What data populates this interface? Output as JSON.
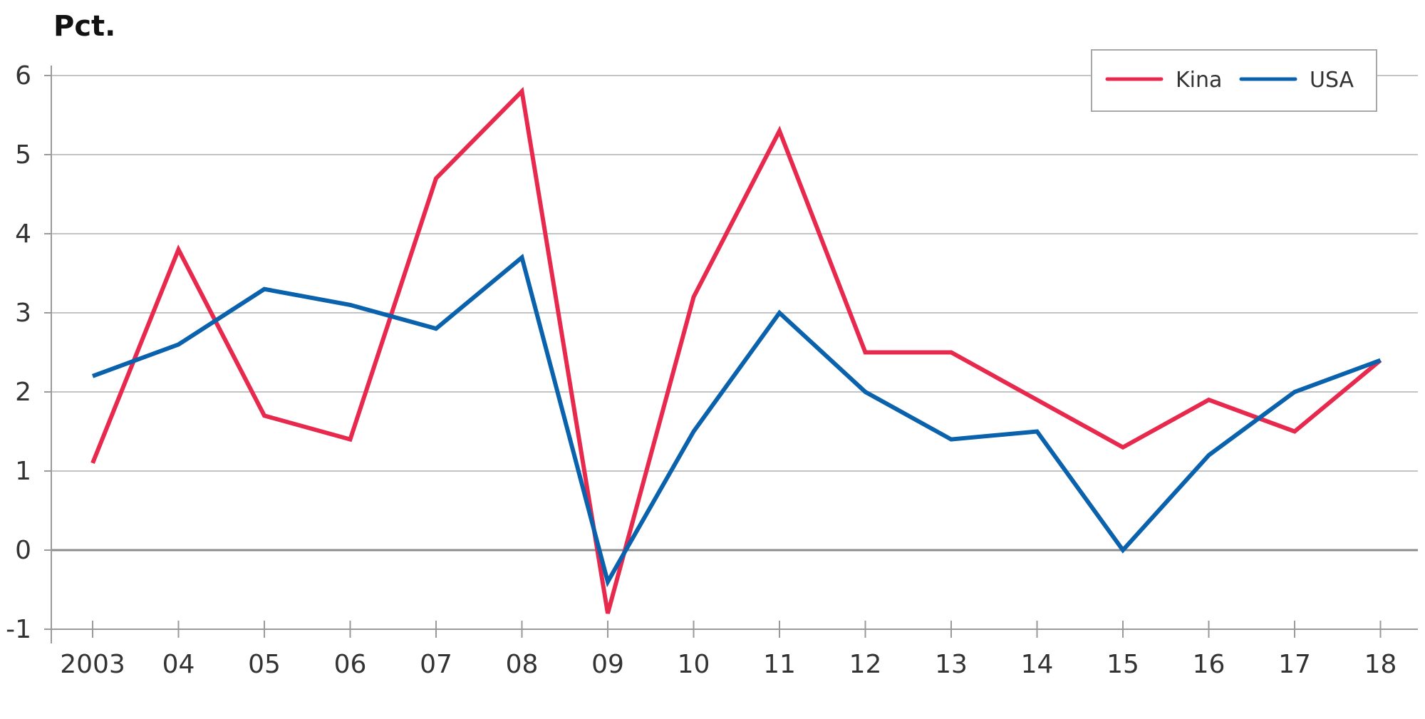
{
  "chart_data": {
    "type": "line",
    "unit_label": "Pct.",
    "x": [
      "2003",
      "04",
      "05",
      "06",
      "07",
      "08",
      "09",
      "10",
      "11",
      "12",
      "13",
      "14",
      "15",
      "16",
      "17",
      "18"
    ],
    "y_ticks": [
      "6",
      "5",
      "4",
      "3",
      "2",
      "1",
      "0",
      "-1"
    ],
    "ylim": [
      -1,
      6
    ],
    "grid": true,
    "legend_position": "top-right",
    "series": [
      {
        "name": "Kina",
        "color": "#e8294e",
        "values": [
          1.1,
          3.8,
          1.7,
          1.4,
          4.7,
          5.8,
          -0.8,
          3.2,
          5.3,
          2.5,
          2.5,
          1.9,
          1.3,
          1.9,
          1.5,
          2.4
        ]
      },
      {
        "name": "USA",
        "color": "#0a62ad",
        "values": [
          2.2,
          2.6,
          3.3,
          3.1,
          2.8,
          3.7,
          -0.4,
          1.5,
          3.0,
          2.0,
          1.4,
          1.5,
          0.0,
          1.2,
          2.0,
          2.4
        ]
      }
    ]
  }
}
